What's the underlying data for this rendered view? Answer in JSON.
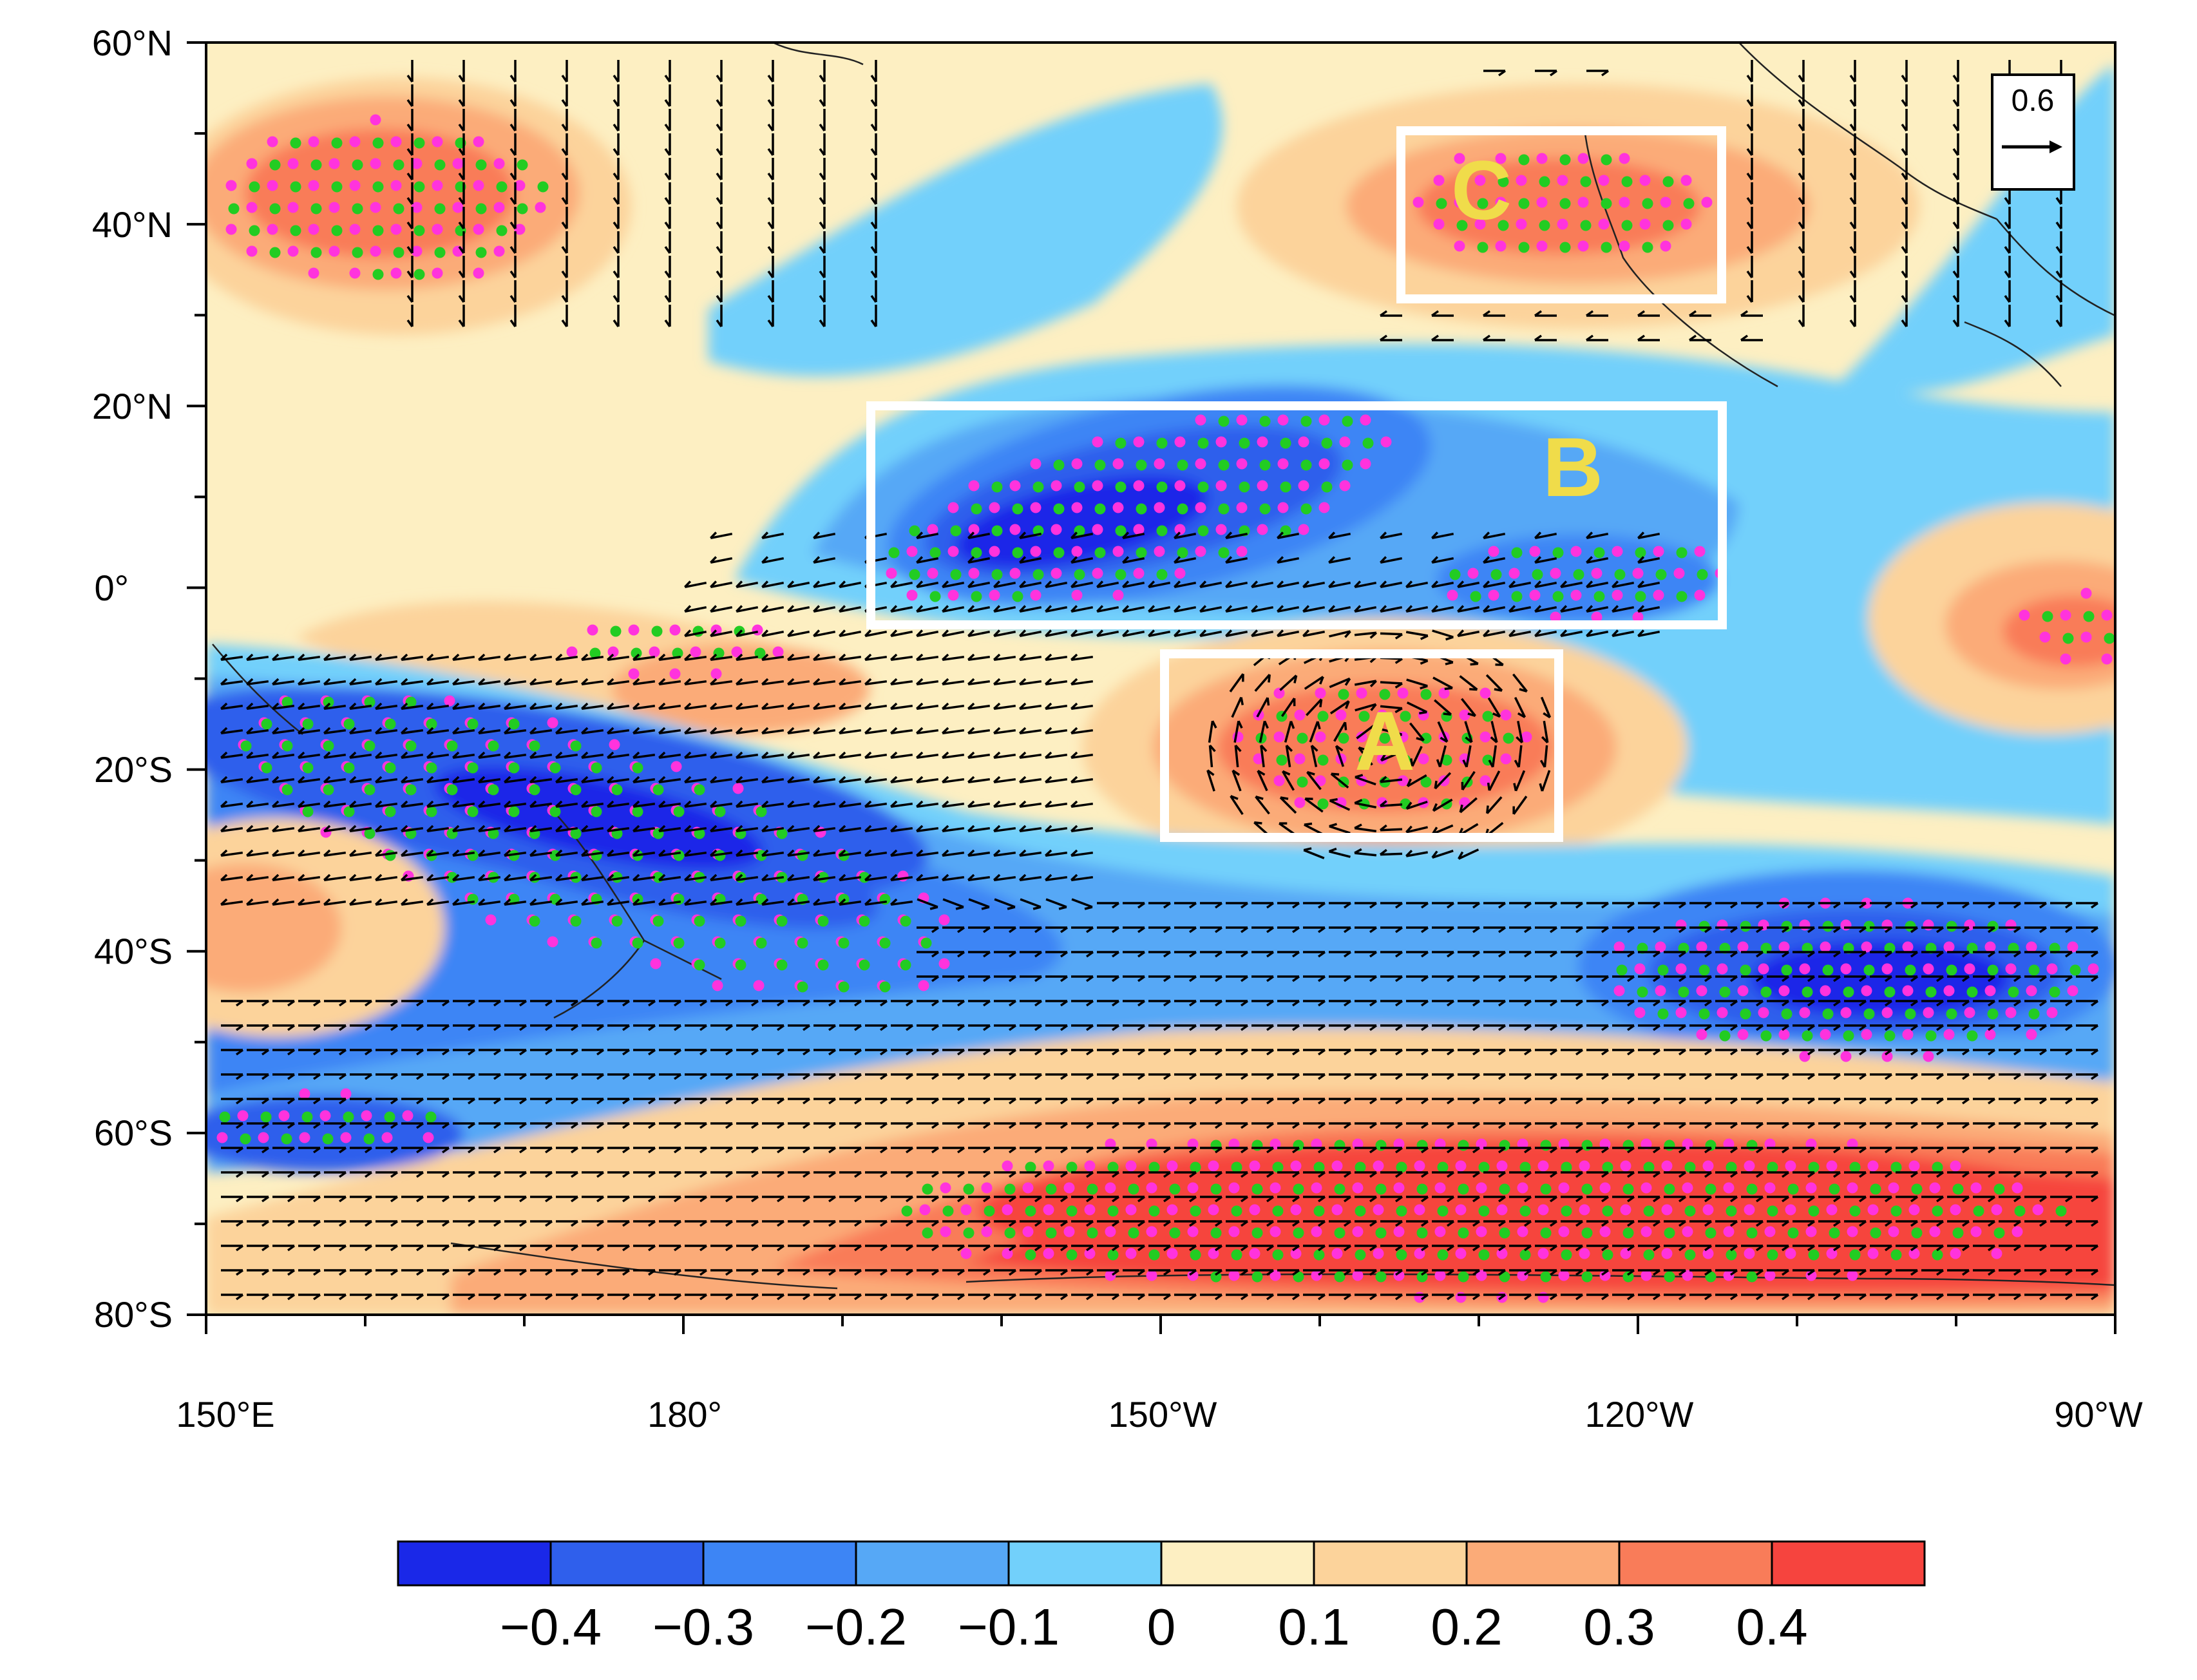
{
  "map": {
    "lat_labels": [
      "60°N",
      "40°N",
      "20°N",
      "0°",
      "20°S",
      "40°S",
      "60°S",
      "80°S"
    ],
    "lon_labels": [
      "150°E",
      "180°",
      "150°W",
      "120°W",
      "90°W"
    ],
    "boxes": [
      {
        "label": "A"
      },
      {
        "label": "B"
      },
      {
        "label": "C"
      }
    ],
    "reference_vector": {
      "value": "0.6"
    },
    "colors": {
      "box_outline": "#ffffff",
      "box_label": "#f0dc4a",
      "stipple_magenta": "#ff33dd",
      "stipple_green": "#22cc22",
      "vectors": "#000000",
      "coastline": "#222222"
    }
  },
  "colorbar": {
    "tick_labels": [
      "−0.4",
      "−0.3",
      "−0.2",
      "−0.1",
      "0",
      "0.1",
      "0.2",
      "0.3",
      "0.4"
    ],
    "bins": [
      {
        "color": "#1a28e8"
      },
      {
        "color": "#2f5fec"
      },
      {
        "color": "#3d85f5"
      },
      {
        "color": "#56a8f6"
      },
      {
        "color": "#72d0fb"
      },
      {
        "color": "#fdefc2"
      },
      {
        "color": "#fcd39b"
      },
      {
        "color": "#fbab78"
      },
      {
        "color": "#f97c59"
      },
      {
        "color": "#f6443e"
      }
    ]
  }
}
